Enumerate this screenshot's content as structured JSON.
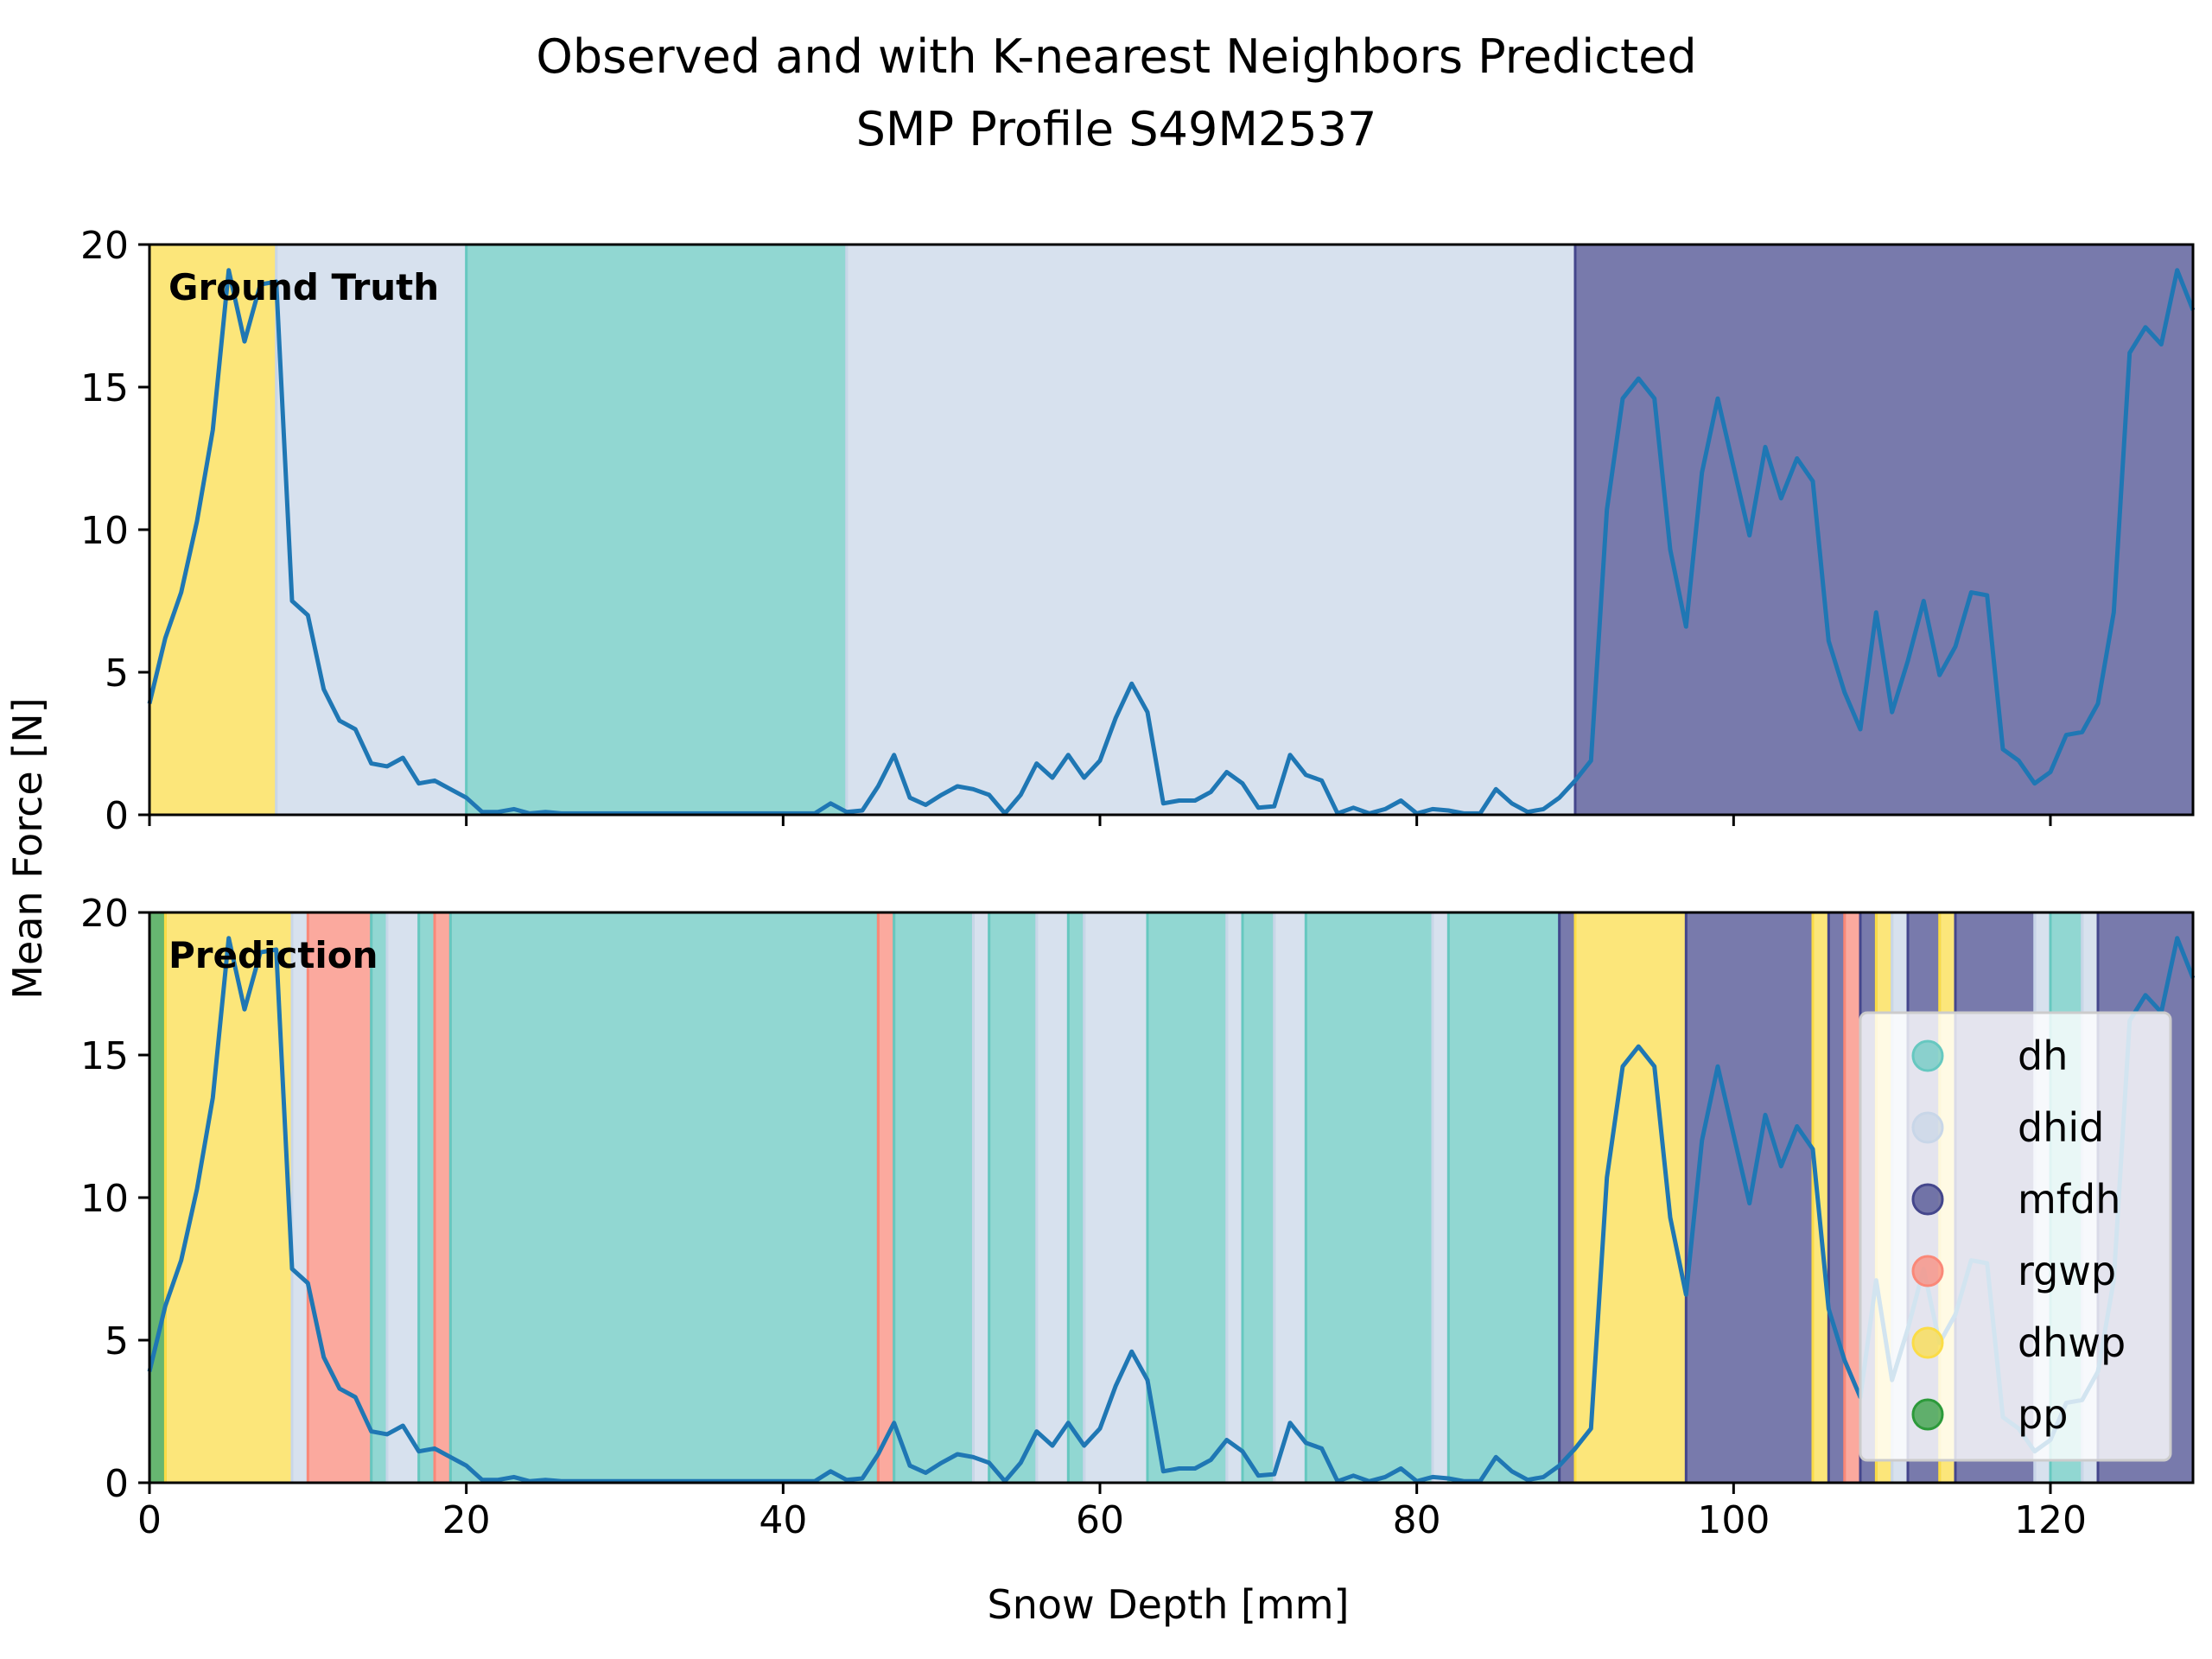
{
  "chart_data": {
    "type": "line",
    "title_line1": "Observed and with K-nearest Neighbors Predicted",
    "title_line2": "SMP Profile S49M2537",
    "xlabel": "Snow Depth [mm]",
    "ylabel": "Mean Force [N]",
    "xlim": [
      0,
      129
    ],
    "ylim": [
      0,
      20
    ],
    "xticks": [
      0,
      20,
      40,
      60,
      80,
      100,
      120
    ],
    "yticks": [
      0,
      5,
      10,
      15,
      20
    ],
    "colors": {
      "dh": "#66c8c0",
      "dhid": "#c8d6e8",
      "mfdh": "#44468c",
      "rgwp": "#fa8878",
      "dhwp": "#fbdc46",
      "pp": "#2c9a3a",
      "line": "#1f77b4"
    },
    "legend": {
      "placement": "right",
      "entries": [
        {
          "key": "dh",
          "label": "dh"
        },
        {
          "key": "dhid",
          "label": "dhid"
        },
        {
          "key": "mfdh",
          "label": "mfdh"
        },
        {
          "key": "rgwp",
          "label": "rgwp"
        },
        {
          "key": "dhwp",
          "label": "dhwp"
        },
        {
          "key": "pp",
          "label": "pp"
        }
      ]
    },
    "series": {
      "x": [
        0,
        1,
        2,
        3,
        4,
        5,
        6,
        7,
        8,
        9,
        10,
        11,
        12,
        13,
        14,
        15,
        16,
        17,
        18,
        19,
        20,
        21,
        22,
        23,
        24,
        25,
        26,
        27,
        28,
        29,
        30,
        31,
        32,
        33,
        34,
        35,
        36,
        37,
        38,
        39,
        40,
        41,
        42,
        43,
        44,
        45,
        46,
        47,
        48,
        49,
        50,
        51,
        52,
        53,
        54,
        55,
        56,
        57,
        58,
        59,
        60,
        61,
        62,
        63,
        64,
        65,
        66,
        67,
        68,
        69,
        70,
        71,
        72,
        73,
        74,
        75,
        76,
        77,
        78,
        79,
        80,
        81,
        82,
        83,
        84,
        85,
        86,
        87,
        88,
        89,
        90,
        91,
        92,
        93,
        94,
        95,
        96,
        97,
        98,
        99,
        100,
        101,
        102,
        103,
        104,
        105,
        106,
        107,
        108,
        109,
        110,
        111,
        112,
        113,
        114,
        115,
        116,
        117,
        118,
        119,
        120,
        121,
        122,
        123,
        124,
        125,
        126,
        127,
        128,
        129
      ],
      "y": [
        3.9,
        6.2,
        7.8,
        10.3,
        13.5,
        19.1,
        16.6,
        18.6,
        18.7,
        7.5,
        7.0,
        4.4,
        3.3,
        3.0,
        1.8,
        1.7,
        2.0,
        1.1,
        1.2,
        0.9,
        0.6,
        0.1,
        0.1,
        0.2,
        0.05,
        0.1,
        0.05,
        0.05,
        0.05,
        0.05,
        0.05,
        0.05,
        0.05,
        0.05,
        0.05,
        0.05,
        0.05,
        0.05,
        0.05,
        0.05,
        0.05,
        0.05,
        0.05,
        0.4,
        0.1,
        0.15,
        1.0,
        2.1,
        0.6,
        0.35,
        0.7,
        1.0,
        0.9,
        0.7,
        0.05,
        0.7,
        1.8,
        1.3,
        2.1,
        1.3,
        1.9,
        3.4,
        4.6,
        3.6,
        0.4,
        0.5,
        0.5,
        0.8,
        1.5,
        1.1,
        0.25,
        0.3,
        2.1,
        1.4,
        1.2,
        0.05,
        0.25,
        0.05,
        0.2,
        0.5,
        0.05,
        0.2,
        0.15,
        0.05,
        0.05,
        0.9,
        0.4,
        0.1,
        0.2,
        0.6,
        1.2,
        1.9,
        10.7,
        14.6,
        15.3,
        14.6,
        9.3,
        6.6,
        12.0,
        14.6,
        12.2,
        9.8,
        12.9,
        11.1,
        12.5,
        11.7,
        6.1,
        4.3,
        3.0,
        7.1,
        3.6,
        5.4,
        7.5,
        4.9,
        5.9,
        7.8,
        7.7,
        2.3,
        1.9,
        1.1,
        1.5,
        2.8,
        2.9,
        3.9,
        7.1,
        16.2,
        17.1,
        16.5,
        19.1,
        17.7
      ]
    },
    "panels": [
      {
        "label": "Ground Truth",
        "segments": [
          {
            "start": 0,
            "end": 8,
            "cls": "dhwp"
          },
          {
            "start": 8,
            "end": 20,
            "cls": "dhid"
          },
          {
            "start": 20,
            "end": 44,
            "cls": "dh"
          },
          {
            "start": 44,
            "end": 90,
            "cls": "dhid"
          },
          {
            "start": 90,
            "end": 129,
            "cls": "mfdh"
          }
        ]
      },
      {
        "label": "Prediction",
        "segments": [
          {
            "start": 0,
            "end": 1,
            "cls": "pp"
          },
          {
            "start": 1,
            "end": 9,
            "cls": "dhwp"
          },
          {
            "start": 9,
            "end": 10,
            "cls": "dhid"
          },
          {
            "start": 10,
            "end": 14,
            "cls": "rgwp"
          },
          {
            "start": 14,
            "end": 15,
            "cls": "dh"
          },
          {
            "start": 15,
            "end": 17,
            "cls": "dhid"
          },
          {
            "start": 17,
            "end": 18,
            "cls": "dh"
          },
          {
            "start": 18,
            "end": 19,
            "cls": "rgwp"
          },
          {
            "start": 19,
            "end": 46,
            "cls": "dh"
          },
          {
            "start": 46,
            "end": 47,
            "cls": "rgwp"
          },
          {
            "start": 47,
            "end": 52,
            "cls": "dh"
          },
          {
            "start": 52,
            "end": 53,
            "cls": "dhid"
          },
          {
            "start": 53,
            "end": 56,
            "cls": "dh"
          },
          {
            "start": 56,
            "end": 58,
            "cls": "dhid"
          },
          {
            "start": 58,
            "end": 59,
            "cls": "dh"
          },
          {
            "start": 59,
            "end": 63,
            "cls": "dhid"
          },
          {
            "start": 63,
            "end": 68,
            "cls": "dh"
          },
          {
            "start": 68,
            "end": 69,
            "cls": "dhid"
          },
          {
            "start": 69,
            "end": 71,
            "cls": "dh"
          },
          {
            "start": 71,
            "end": 73,
            "cls": "dhid"
          },
          {
            "start": 73,
            "end": 81,
            "cls": "dh"
          },
          {
            "start": 81,
            "end": 82,
            "cls": "dhid"
          },
          {
            "start": 82,
            "end": 89,
            "cls": "dh"
          },
          {
            "start": 89,
            "end": 90,
            "cls": "mfdh"
          },
          {
            "start": 90,
            "end": 97,
            "cls": "dhwp"
          },
          {
            "start": 97,
            "end": 105,
            "cls": "mfdh"
          },
          {
            "start": 105,
            "end": 106,
            "cls": "dhwp"
          },
          {
            "start": 106,
            "end": 107,
            "cls": "mfdh"
          },
          {
            "start": 107,
            "end": 108,
            "cls": "rgwp"
          },
          {
            "start": 108,
            "end": 109,
            "cls": "mfdh"
          },
          {
            "start": 109,
            "end": 110,
            "cls": "dhwp"
          },
          {
            "start": 110,
            "end": 111,
            "cls": "dhid"
          },
          {
            "start": 111,
            "end": 113,
            "cls": "mfdh"
          },
          {
            "start": 113,
            "end": 114,
            "cls": "dhwp"
          },
          {
            "start": 114,
            "end": 119,
            "cls": "mfdh"
          },
          {
            "start": 119,
            "end": 120,
            "cls": "dhid"
          },
          {
            "start": 120,
            "end": 122,
            "cls": "dh"
          },
          {
            "start": 122,
            "end": 123,
            "cls": "dhid"
          },
          {
            "start": 123,
            "end": 129,
            "cls": "mfdh"
          }
        ]
      }
    ]
  }
}
